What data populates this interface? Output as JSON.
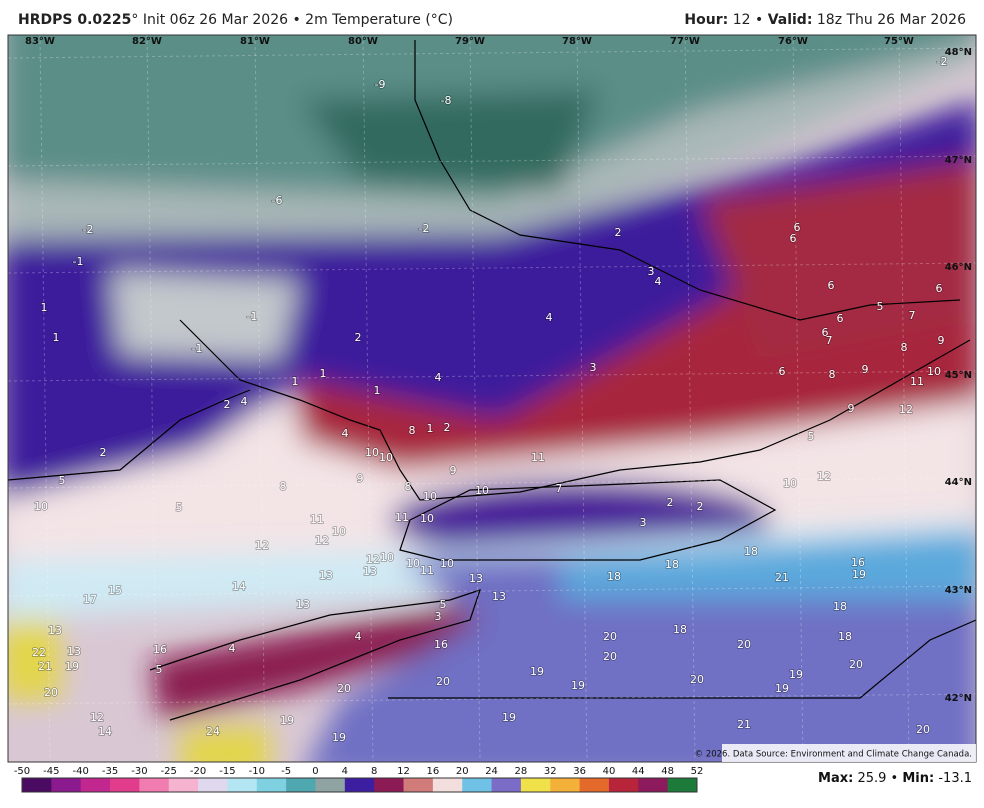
{
  "header": {
    "model": "HRDPS 0.0225",
    "title_rest": "° Init 06z 26 Mar 2026 • 2m Temperature (°C)",
    "hour_label": "Hour:",
    "hour": "12",
    "sep": "•",
    "valid_label": "Valid:",
    "valid": "18z Thu 26 Mar 2026"
  },
  "longitudes": [
    "83°W",
    "82°W",
    "81°W",
    "80°W",
    "79°W",
    "78°W",
    "77°W",
    "76°W",
    "75°W"
  ],
  "latitudes": [
    "48°N",
    "47°N",
    "46°N",
    "45°N",
    "44°N",
    "43°N",
    "42°N"
  ],
  "map_labels": [
    -9,
    -8,
    -2,
    -6,
    -2,
    -2,
    -1,
    -1,
    -1,
    2,
    3,
    4,
    6,
    6,
    6,
    6,
    5,
    7,
    6,
    6,
    7,
    8,
    9,
    1,
    1,
    2,
    4,
    3,
    4,
    1,
    1,
    1,
    2,
    4,
    6,
    8,
    9,
    10,
    11,
    9,
    12,
    5,
    4,
    8,
    1,
    2,
    2,
    10,
    10,
    11,
    9,
    9,
    8,
    8,
    10,
    10,
    7,
    10,
    12,
    5,
    10,
    5,
    11,
    10,
    11,
    10,
    12,
    12,
    3,
    2,
    2,
    12,
    10,
    10,
    10,
    11,
    13,
    13,
    18,
    16,
    18,
    14,
    18,
    21,
    19,
    13,
    13,
    17,
    15,
    13,
    5,
    3,
    18,
    4,
    18,
    13,
    20,
    18,
    16,
    13,
    16,
    4,
    20,
    20,
    22,
    21,
    19,
    5,
    19,
    20,
    20,
    19,
    20,
    19,
    19,
    20,
    20,
    12,
    19,
    19,
    14,
    21,
    20,
    24,
    19
  ],
  "colorbar": {
    "ticks": [
      -50,
      -45,
      -40,
      -35,
      -30,
      -25,
      -20,
      -15,
      -10,
      -5,
      0,
      4,
      8,
      12,
      16,
      20,
      24,
      28,
      32,
      36,
      40,
      44,
      48,
      52
    ],
    "colors": [
      "#4b0b62",
      "#8a1a8e",
      "#c2278f",
      "#e23d8c",
      "#f07cb0",
      "#f5b3d0",
      "#e0d8ee",
      "#b3e6f2",
      "#7fd0e0",
      "#4fa7b0",
      "#8fa3a3",
      "#3b1fa0",
      "#8b1a55",
      "#d27b7b",
      "#f3dede",
      "#6fc2e6",
      "#7b6cc7",
      "#f0e04a",
      "#f4b13a",
      "#e36a2b",
      "#b8253a",
      "#8c1a5c",
      "#1c7a3a"
    ]
  },
  "copyright": "© 2026. Data Source: Environment and Climate Change Canada.",
  "stats": {
    "max_label": "Max:",
    "max": 25.9,
    "sep": "•",
    "min_label": "Min:",
    "min": -13.1
  }
}
